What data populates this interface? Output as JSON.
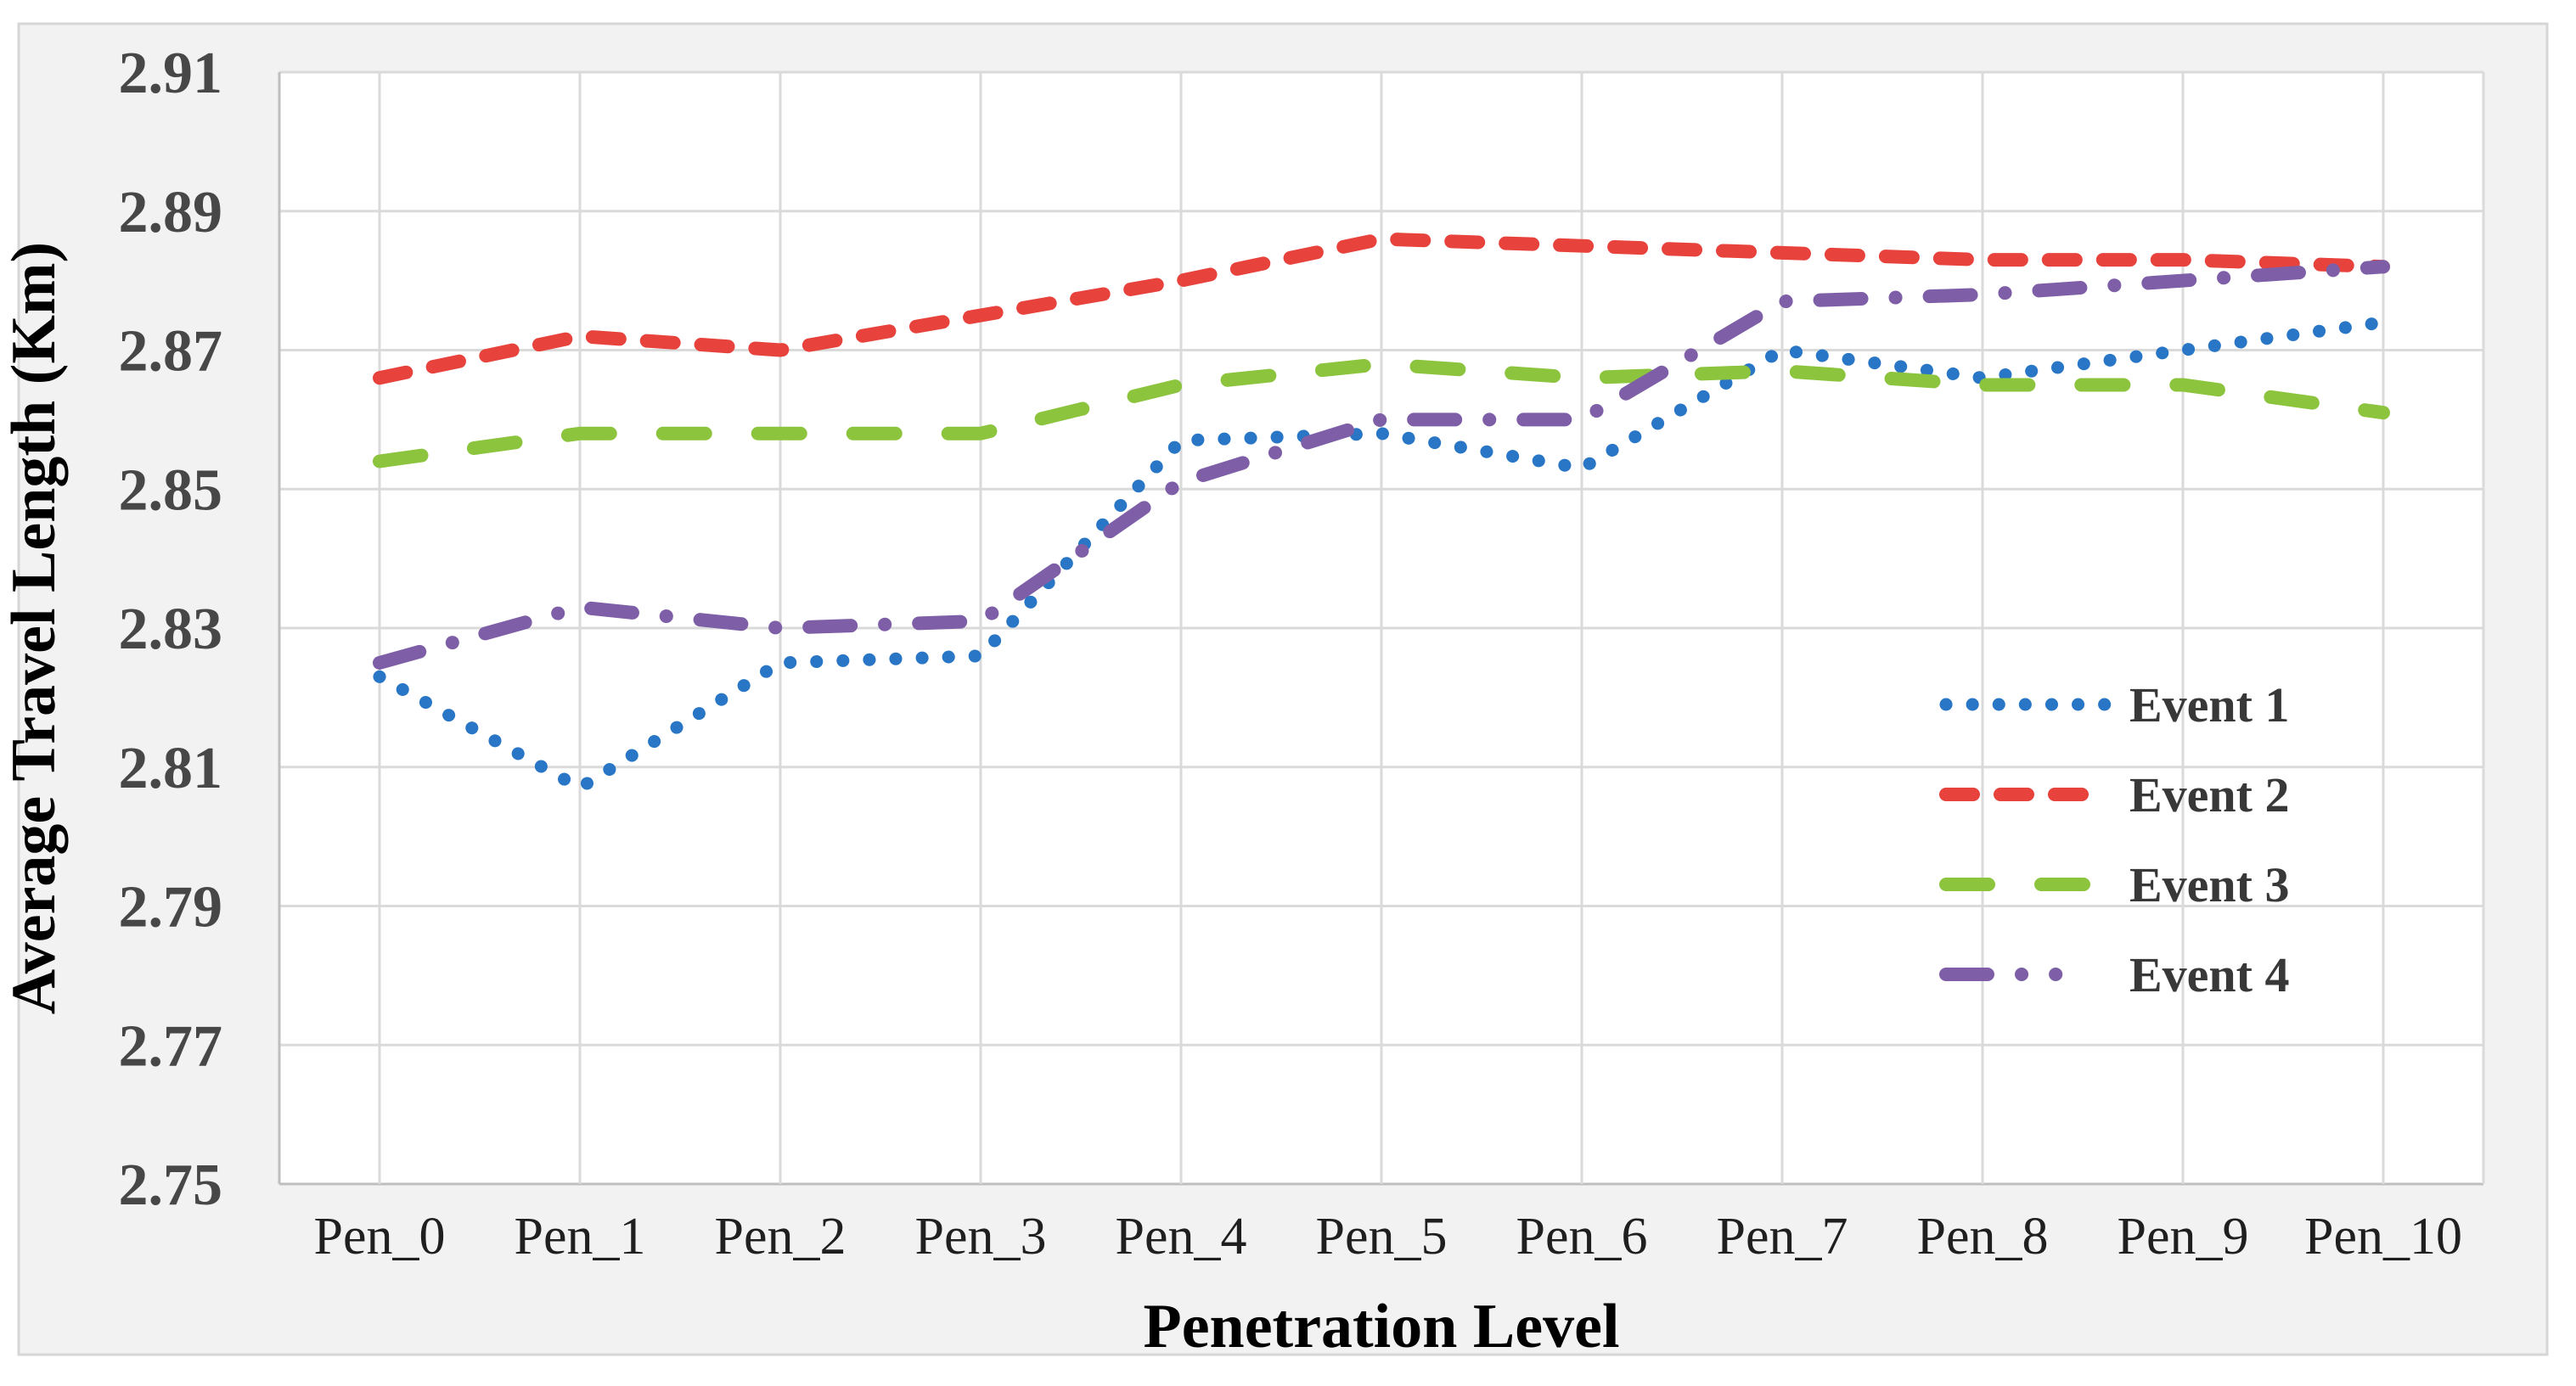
{
  "chart_data": {
    "type": "line",
    "title": "",
    "xlabel": "Penetration Level",
    "ylabel": "Average Travel Length (Km)",
    "categories": [
      "Pen_0",
      "Pen_1",
      "Pen_2",
      "Pen_3",
      "Pen_4",
      "Pen_5",
      "Pen_6",
      "Pen_7",
      "Pen_8",
      "Pen_9",
      "Pen_10"
    ],
    "y_tick_labels": [
      "2.91",
      "2.89",
      "2.87",
      "2.85",
      "2.83",
      "2.81",
      "2.79",
      "2.77",
      "2.75"
    ],
    "ylim": [
      2.75,
      2.91
    ],
    "grid": true,
    "legend_position": "inside-right",
    "background_color": "#F2F2F2",
    "plot_background_color": "#FFFFFF",
    "gridline_color": "#DADADA",
    "axis_line_color": "#BFBFBF",
    "series": [
      {
        "name": "Event 1",
        "color": "#2876C5",
        "line_style": "dotted",
        "values": [
          2.823,
          2.807,
          2.825,
          2.826,
          2.857,
          2.858,
          2.853,
          2.87,
          2.866,
          2.87,
          2.874
        ]
      },
      {
        "name": "Event 2",
        "color": "#E8423C",
        "line_style": "dashed",
        "values": [
          2.866,
          2.872,
          2.87,
          2.875,
          2.88,
          2.886,
          2.885,
          2.884,
          2.883,
          2.883,
          2.882
        ]
      },
      {
        "name": "Event 3",
        "color": "#8CC43E",
        "line_style": "long-dash",
        "values": [
          2.854,
          2.858,
          2.858,
          2.858,
          2.865,
          2.868,
          2.866,
          2.867,
          2.865,
          2.865,
          2.861
        ]
      },
      {
        "name": "Event 4",
        "color": "#7E5FA7",
        "line_style": "dash-dot",
        "values": [
          2.825,
          2.833,
          2.83,
          2.831,
          2.851,
          2.86,
          2.86,
          2.877,
          2.878,
          2.88,
          2.882
        ]
      }
    ]
  }
}
